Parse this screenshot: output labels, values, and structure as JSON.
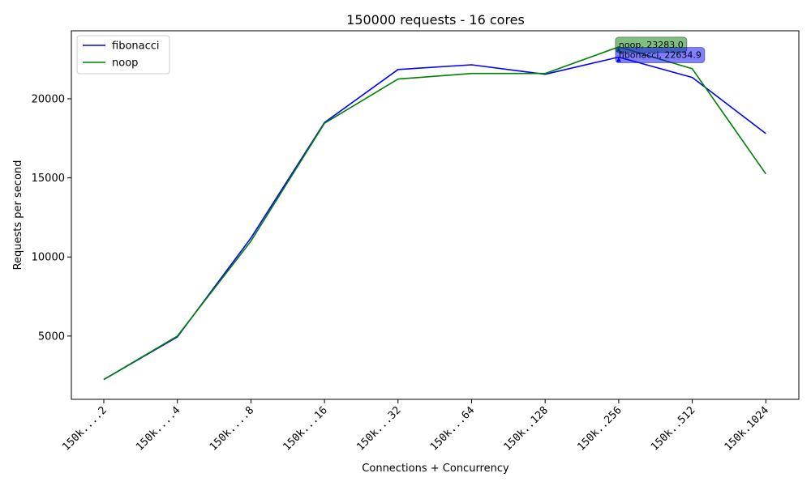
{
  "chart_data": {
    "type": "line",
    "title": "150000 requests - 16 cores",
    "xlabel": "Connections + Concurrency",
    "ylabel": "Requests per second",
    "categories": [
      "150k....2",
      "150k....4",
      "150k....8",
      "150k...16",
      "150k...32",
      "150k...64",
      "150k..128",
      "150k..256",
      "150k..512",
      "150k.1024"
    ],
    "ylim": [
      1000,
      24300
    ],
    "yticks": [
      5000,
      10000,
      15000,
      20000
    ],
    "grid": false,
    "legend_position": "upper-left",
    "series": [
      {
        "name": "fibonacci",
        "color": "#0000ff",
        "values": [
          2250,
          4950,
          11200,
          18500,
          21850,
          22150,
          21550,
          22634.9,
          21350,
          17800
        ]
      },
      {
        "name": "noop",
        "color": "#008000",
        "values": [
          2250,
          5000,
          11000,
          18450,
          21250,
          21600,
          21600,
          23283.0,
          21900,
          15250
        ]
      }
    ],
    "annotations": [
      {
        "series": "noop",
        "category": "150k..256",
        "text": "noop, 23283.0",
        "color": "#008000"
      },
      {
        "series": "fibonacci",
        "category": "150k..256",
        "text": "fibonacci, 22634.9",
        "color": "#0000ff"
      }
    ]
  }
}
